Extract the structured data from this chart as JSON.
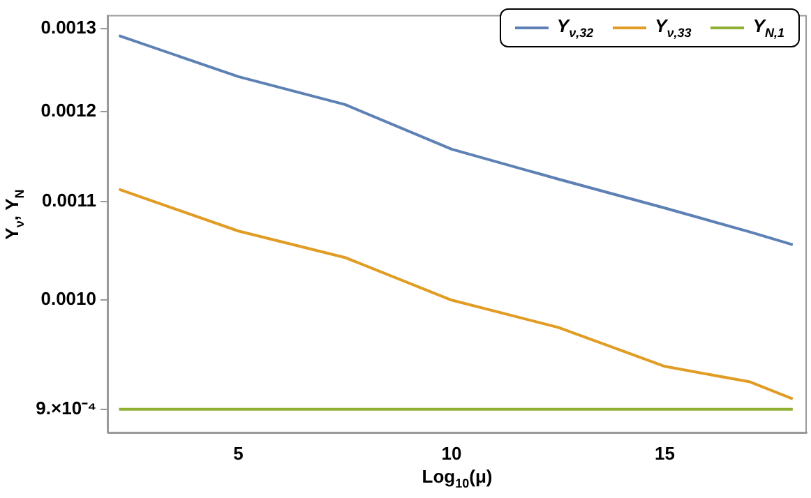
{
  "chart_data": {
    "type": "line",
    "xlabel": "Log$_{10}$(μ)",
    "ylabel": "Y$_{ν}$, Y$_{N}$",
    "log": "y",
    "xlim": [
      1.93,
      18.33
    ],
    "xticks": [
      5,
      10,
      15
    ],
    "ylim": [
      0.000881,
      0.001317
    ],
    "yticks": [
      {
        "value": 0.0009,
        "label": "9.×10⁻⁴"
      },
      {
        "value": 0.001,
        "label": "0.0010"
      },
      {
        "value": 0.0011,
        "label": "0.0011"
      },
      {
        "value": 0.0012,
        "label": "0.0012"
      },
      {
        "value": 0.0013,
        "label": "0.0013"
      }
    ],
    "grid": false,
    "legend": "top right",
    "marker": "none",
    "line_style": "solid",
    "x": [
      2.2,
      5,
      7.5,
      10,
      12.5,
      15,
      17,
      18
    ],
    "series": [
      {
        "name": "Y$_{ν,32}$",
        "color": "#5e81b5",
        "values": [
          0.001291,
          0.001241,
          0.001208,
          0.001157,
          0.001124,
          0.001093,
          0.001068,
          0.001055
        ]
      },
      {
        "name": "Y$_{ν,33}$",
        "color": "#e19c24",
        "values": [
          0.001113,
          0.001069,
          0.001042,
          0.001,
          0.000974,
          0.000938,
          0.000924,
          0.000909
        ]
      },
      {
        "name": "Y$_{N,1}$",
        "color": "#8fb032",
        "values": [
          0.0009,
          0.0009,
          0.0009,
          0.0009,
          0.0009,
          0.0009,
          0.0009,
          0.0009
        ]
      }
    ]
  }
}
